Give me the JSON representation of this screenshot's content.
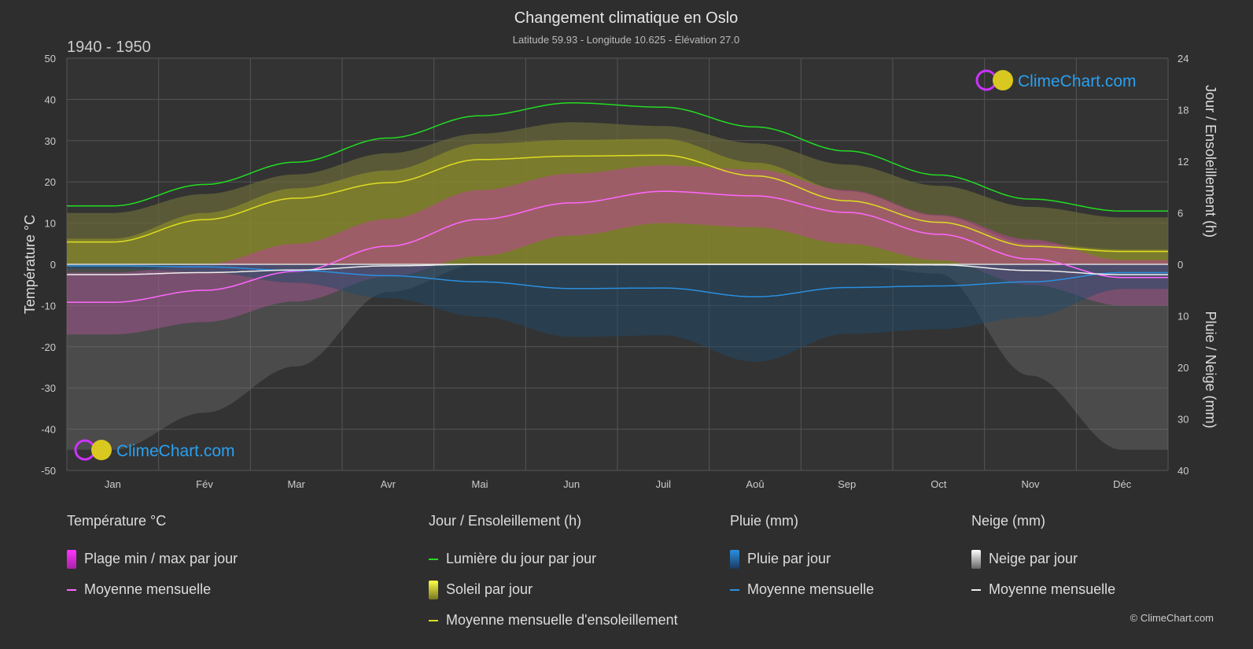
{
  "title": "Changement climatique en Oslo",
  "subtitle": "Latitude 59.93 - Longitude 10.625 - Élévation 27.0",
  "period": "1940 - 1950",
  "logo_text": "ClimeChart.com",
  "copyright": "© ClimeChart.com",
  "chart_data": {
    "type": "line",
    "categories": [
      "Jan",
      "Fév",
      "Mar",
      "Avr",
      "Mai",
      "Jun",
      "Juil",
      "Aoû",
      "Sep",
      "Oct",
      "Nov",
      "Déc"
    ],
    "left_axis": {
      "label": "Température °C",
      "ylim": [
        -50,
        50
      ],
      "ticks": [
        50,
        40,
        30,
        20,
        10,
        0,
        -10,
        -20,
        -30,
        -40,
        -50
      ]
    },
    "right_axis_top": {
      "label": "Jour / Ensoleillement (h)",
      "ylim": [
        0,
        24
      ],
      "ticks": [
        24,
        18,
        12,
        6,
        0
      ]
    },
    "right_axis_bottom": {
      "label": "Pluie / Neige (mm)",
      "ylim": [
        0,
        40
      ],
      "ticks": [
        0,
        10,
        20,
        30,
        40
      ]
    },
    "series": [
      {
        "name": "Moyenne mensuelle temperature",
        "axis": "temp",
        "color": "#ff66ff",
        "values": [
          -9.2,
          -6.3,
          -1.7,
          4.4,
          10.9,
          14.9,
          17.7,
          16.6,
          12.6,
          7.3,
          1.3,
          -3.2
        ]
      },
      {
        "name": "Temp max moyenne",
        "axis": "temp",
        "values": [
          -4,
          -2,
          3,
          9,
          16,
          20,
          22,
          21,
          16,
          10,
          4,
          -1
        ]
      },
      {
        "name": "Temp min moyenne",
        "axis": "temp",
        "values": [
          -14,
          -11,
          -6,
          0,
          5,
          10,
          13,
          12,
          8,
          4,
          -2,
          -7
        ]
      },
      {
        "name": "Lumière du jour par jour",
        "axis": "hours",
        "color": "#22dd22",
        "values": [
          6.8,
          9.3,
          11.9,
          14.7,
          17.3,
          18.8,
          18.3,
          16.0,
          13.2,
          10.4,
          7.6,
          6.2
        ]
      },
      {
        "name": "Moyenne mensuelle d'ensoleillement",
        "axis": "hours",
        "color": "#dddd22",
        "values": [
          2.6,
          5.2,
          7.7,
          9.5,
          12.2,
          12.6,
          12.7,
          10.3,
          7.4,
          4.9,
          2.1,
          1.5
        ]
      },
      {
        "name": "Pluie moyenne mensuelle",
        "axis": "mm",
        "color": "#2a8fe0",
        "values": [
          0.3,
          0.5,
          1.2,
          2.2,
          3.4,
          4.7,
          4.6,
          6.3,
          4.5,
          4.2,
          3.4,
          1.6
        ]
      },
      {
        "name": "Neige moyenne mensuelle",
        "axis": "mm",
        "color": "#eeeeee",
        "values": [
          2.0,
          1.6,
          1.1,
          0.3,
          0,
          0,
          0,
          0,
          0,
          0.1,
          1.2,
          2.0
        ]
      }
    ]
  },
  "legend": {
    "temp": {
      "title": "Température °C",
      "items": [
        "Plage min / max par jour",
        "Moyenne mensuelle"
      ]
    },
    "sun": {
      "title": "Jour / Ensoleillement (h)",
      "items": [
        "Lumière du jour par jour",
        "Soleil par jour",
        "Moyenne mensuelle d'ensoleillement"
      ]
    },
    "rain": {
      "title": "Pluie (mm)",
      "items": [
        "Pluie par jour",
        "Moyenne mensuelle"
      ]
    },
    "snow": {
      "title": "Neige (mm)",
      "items": [
        "Neige par jour",
        "Moyenne mensuelle"
      ]
    }
  },
  "colors": {
    "daylight": "#22dd22",
    "sunshine": "#dddd22",
    "temp": "#ff66ff",
    "rain": "#2a8fe0",
    "snow": "#eeeeee",
    "bg": "#2e2e2e"
  }
}
